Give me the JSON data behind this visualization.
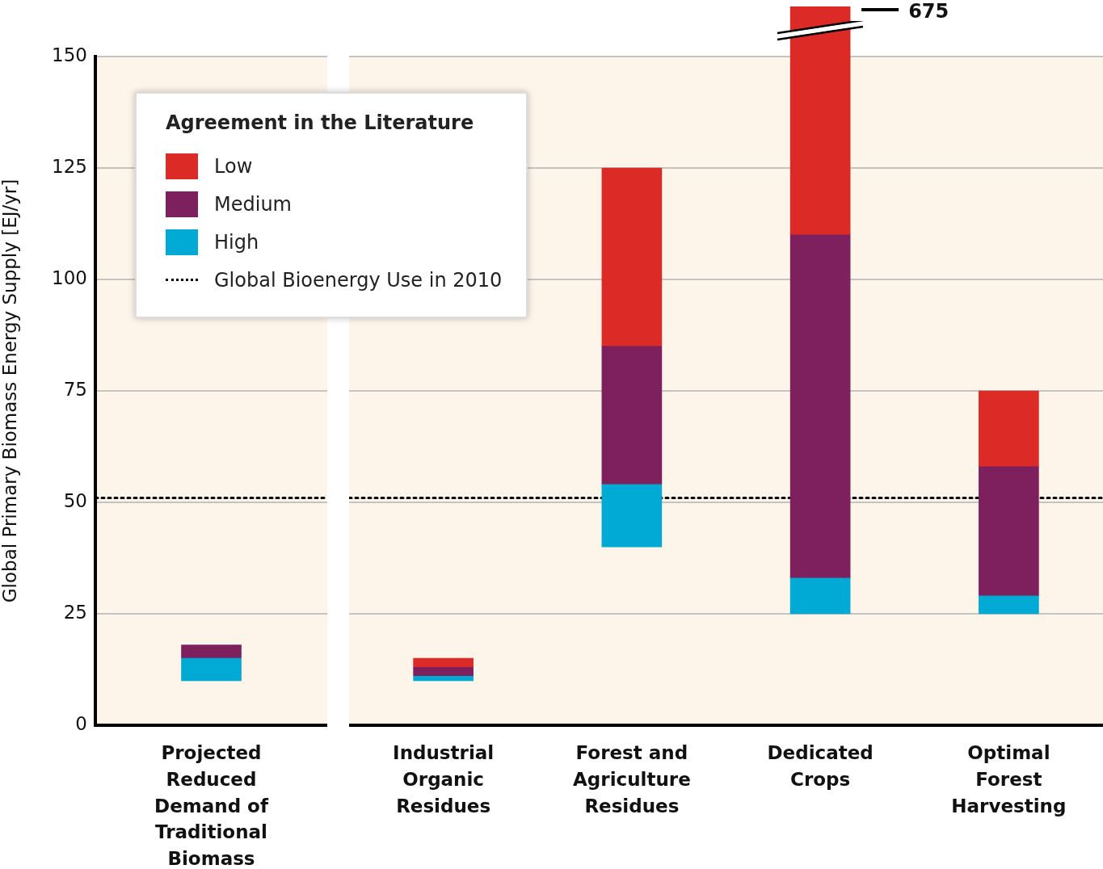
{
  "chart_data": [
    {
      "type": "bar",
      "ylabel": "Global Primary Biomass Energy Supply [EJ/yr]",
      "categories": [
        "Projected Reduced Demand of Traditional Biomass"
      ],
      "series": [
        {
          "color": "#00aad4",
          "base": [
            10
          ],
          "values": [
            5
          ]
        },
        {
          "color": "#7e1f5e",
          "base": [
            15
          ],
          "values": [
            3
          ]
        }
      ],
      "ylim": [
        0,
        150
      ],
      "yticks": [
        0,
        25,
        50,
        75,
        100,
        125,
        150
      ],
      "grid": "y",
      "ref_lines": [
        {
          "axis": "y",
          "value": 51,
          "line_style": "dotted",
          "color": "#000000"
        }
      ]
    },
    {
      "type": "bar",
      "categories": [
        "Industrial Organic Residues",
        "Forest and Agriculture Residues",
        "Dedicated Crops",
        "Optimal Forest Harvesting"
      ],
      "annotations": [
        "675"
      ],
      "legend_title": "Agreement in the Literature",
      "legend": "top left",
      "series": [
        {
          "name": "High",
          "color": "#00aad4",
          "base": [
            10,
            40,
            25,
            25
          ],
          "values": [
            1,
            14,
            8,
            4
          ]
        },
        {
          "name": "Medium",
          "color": "#7e1f5e",
          "base": [
            11,
            54,
            33,
            29
          ],
          "values": [
            2,
            31,
            77,
            29
          ]
        },
        {
          "name": "Low",
          "color": "#dc2a26",
          "base": [
            13,
            85,
            110,
            58
          ],
          "values": [
            2,
            40,
            565,
            17
          ]
        }
      ],
      "ylim": [
        0,
        150
      ],
      "yticks": [
        0,
        25,
        50,
        75,
        100,
        125,
        150
      ],
      "grid": "y",
      "tick_labels": "x",
      "ref_lines": [
        {
          "axis": "y",
          "value": 51,
          "label": "Global Bioenergy Use in 2010",
          "line_style": "dotted",
          "color": "#000000"
        }
      ]
    }
  ]
}
